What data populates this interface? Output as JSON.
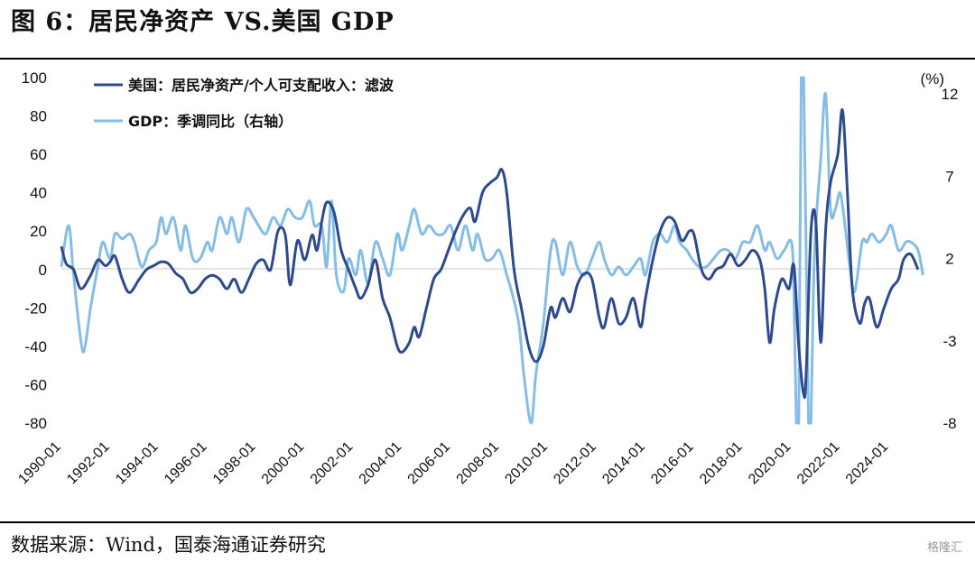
{
  "title": "图 6：居民净资产 VS.美国 GDP",
  "source": "数据来源：Wind，国泰海通证券研究",
  "watermark": "格隆汇",
  "chart_data": {
    "type": "line",
    "unit_right": "(%)",
    "left_axis": {
      "ticks": [
        100,
        80,
        60,
        40,
        20,
        0,
        -20,
        -40,
        -60,
        -80
      ],
      "ylim": [
        -80,
        100
      ]
    },
    "right_axis": {
      "ticks": [
        12,
        7,
        2,
        -3,
        -8
      ],
      "ylim": [
        -8,
        13
      ]
    },
    "x_ticks": [
      "1990-01",
      "1992-01",
      "1994-01",
      "1996-01",
      "1998-01",
      "2000-01",
      "2002-01",
      "2004-01",
      "2006-01",
      "2008-01",
      "2010-01",
      "2012-01",
      "2014-01",
      "2016-01",
      "2018-01",
      "2020-01",
      "2022-01",
      "2024-01"
    ],
    "x_range": [
      1990.0,
      2025.5
    ],
    "grid": false,
    "series": [
      {
        "name": "美国：居民净资产/个人可支配收入：滤波",
        "axis": "left",
        "color": "#2e4a8e",
        "points": [
          [
            1990.0,
            12
          ],
          [
            1990.2,
            3
          ],
          [
            1990.5,
            0
          ],
          [
            1990.8,
            -10
          ],
          [
            1991.2,
            -3
          ],
          [
            1991.5,
            5
          ],
          [
            1991.8,
            2
          ],
          [
            1992.0,
            4
          ],
          [
            1992.2,
            7
          ],
          [
            1992.5,
            -5
          ],
          [
            1992.8,
            -12
          ],
          [
            1993.2,
            -5
          ],
          [
            1993.5,
            0
          ],
          [
            1993.8,
            2
          ],
          [
            1994.1,
            4
          ],
          [
            1994.4,
            3
          ],
          [
            1994.7,
            -2
          ],
          [
            1995.0,
            -5
          ],
          [
            1995.3,
            -12
          ],
          [
            1995.6,
            -10
          ],
          [
            1995.9,
            -5
          ],
          [
            1996.2,
            -3
          ],
          [
            1996.5,
            -5
          ],
          [
            1996.8,
            -10
          ],
          [
            1997.1,
            -5
          ],
          [
            1997.4,
            -12
          ],
          [
            1997.7,
            -5
          ],
          [
            1998.0,
            3
          ],
          [
            1998.3,
            5
          ],
          [
            1998.6,
            0
          ],
          [
            1998.9,
            20
          ],
          [
            1999.2,
            18
          ],
          [
            1999.4,
            -8
          ],
          [
            1999.7,
            15
          ],
          [
            2000.0,
            5
          ],
          [
            2000.3,
            18
          ],
          [
            2000.5,
            10
          ],
          [
            2000.7,
            25
          ],
          [
            2000.9,
            35
          ],
          [
            2001.2,
            30
          ],
          [
            2001.5,
            10
          ],
          [
            2001.8,
            0
          ],
          [
            2002.1,
            -10
          ],
          [
            2002.3,
            -15
          ],
          [
            2002.6,
            -8
          ],
          [
            2002.9,
            5
          ],
          [
            2003.2,
            -15
          ],
          [
            2003.5,
            -25
          ],
          [
            2003.8,
            -40
          ],
          [
            2004.0,
            -43
          ],
          [
            2004.3,
            -38
          ],
          [
            2004.5,
            -30
          ],
          [
            2004.7,
            -35
          ],
          [
            2005.0,
            -20
          ],
          [
            2005.3,
            -5
          ],
          [
            2005.6,
            0
          ],
          [
            2005.9,
            10
          ],
          [
            2006.2,
            20
          ],
          [
            2006.5,
            28
          ],
          [
            2006.8,
            32
          ],
          [
            2007.0,
            25
          ],
          [
            2007.3,
            40
          ],
          [
            2007.6,
            45
          ],
          [
            2007.9,
            48
          ],
          [
            2008.1,
            52
          ],
          [
            2008.3,
            40
          ],
          [
            2008.6,
            0
          ],
          [
            2008.9,
            -20
          ],
          [
            2009.2,
            -40
          ],
          [
            2009.5,
            -48
          ],
          [
            2009.8,
            -40
          ],
          [
            2010.1,
            -20
          ],
          [
            2010.3,
            -25
          ],
          [
            2010.6,
            -15
          ],
          [
            2010.9,
            -22
          ],
          [
            2011.2,
            -8
          ],
          [
            2011.5,
            -2
          ],
          [
            2011.8,
            -5
          ],
          [
            2012.1,
            -25
          ],
          [
            2012.3,
            -30
          ],
          [
            2012.6,
            -15
          ],
          [
            2012.9,
            -28
          ],
          [
            2013.2,
            -25
          ],
          [
            2013.5,
            -15
          ],
          [
            2013.8,
            -30
          ],
          [
            2014.0,
            -15
          ],
          [
            2014.3,
            5
          ],
          [
            2014.6,
            20
          ],
          [
            2014.9,
            27
          ],
          [
            2015.2,
            25
          ],
          [
            2015.5,
            15
          ],
          [
            2015.8,
            20
          ],
          [
            2016.0,
            18
          ],
          [
            2016.3,
            0
          ],
          [
            2016.6,
            -5
          ],
          [
            2016.9,
            0
          ],
          [
            2017.2,
            2
          ],
          [
            2017.5,
            8
          ],
          [
            2017.8,
            2
          ],
          [
            2018.1,
            5
          ],
          [
            2018.4,
            10
          ],
          [
            2018.7,
            5
          ],
          [
            2018.9,
            -10
          ],
          [
            2019.1,
            -38
          ],
          [
            2019.3,
            -20
          ],
          [
            2019.6,
            -5
          ],
          [
            2019.9,
            -10
          ],
          [
            2020.1,
            2
          ],
          [
            2020.3,
            -40
          ],
          [
            2020.5,
            -65
          ],
          [
            2020.6,
            -55
          ],
          [
            2020.8,
            20
          ],
          [
            2021.0,
            25
          ],
          [
            2021.2,
            -38
          ],
          [
            2021.4,
            20
          ],
          [
            2021.6,
            45
          ],
          [
            2021.9,
            60
          ],
          [
            2022.1,
            83
          ],
          [
            2022.3,
            40
          ],
          [
            2022.5,
            -10
          ],
          [
            2022.8,
            -28
          ],
          [
            2023.0,
            -18
          ],
          [
            2023.2,
            -15
          ],
          [
            2023.5,
            -30
          ],
          [
            2023.8,
            -20
          ],
          [
            2024.1,
            -10
          ],
          [
            2024.4,
            -5
          ],
          [
            2024.6,
            5
          ],
          [
            2024.9,
            8
          ],
          [
            2025.2,
            0
          ]
        ]
      },
      {
        "name": "GDP：季调同比（右轴）",
        "axis": "right",
        "color": "#86bde6",
        "points": [
          [
            1990.0,
            1.5
          ],
          [
            1990.3,
            4
          ],
          [
            1990.5,
            1
          ],
          [
            1990.8,
            -3
          ],
          [
            1990.95,
            -3.5
          ],
          [
            1991.2,
            -1
          ],
          [
            1991.5,
            1.5
          ],
          [
            1991.7,
            3
          ],
          [
            1992.0,
            2
          ],
          [
            1992.2,
            3.5
          ],
          [
            1992.5,
            3.2
          ],
          [
            1992.8,
            3.5
          ],
          [
            1993.0,
            3
          ],
          [
            1993.3,
            1.5
          ],
          [
            1993.6,
            2.5
          ],
          [
            1993.9,
            3
          ],
          [
            1994.1,
            4.5
          ],
          [
            1994.3,
            3.5
          ],
          [
            1994.6,
            4.5
          ],
          [
            1994.9,
            2.5
          ],
          [
            1995.1,
            4
          ],
          [
            1995.4,
            2
          ],
          [
            1995.7,
            2
          ],
          [
            1996.0,
            3
          ],
          [
            1996.2,
            2.5
          ],
          [
            1996.5,
            4.5
          ],
          [
            1996.8,
            3.5
          ],
          [
            1997.0,
            4.5
          ],
          [
            1997.3,
            3
          ],
          [
            1997.6,
            5
          ],
          [
            1997.9,
            4.5
          ],
          [
            1998.1,
            4
          ],
          [
            1998.4,
            3.5
          ],
          [
            1998.7,
            4.5
          ],
          [
            1999.0,
            4
          ],
          [
            1999.3,
            5
          ],
          [
            1999.6,
            4.5
          ],
          [
            1999.9,
            4.5
          ],
          [
            2000.2,
            5.5
          ],
          [
            2000.4,
            4
          ],
          [
            2000.7,
            4
          ],
          [
            2000.9,
            1.5
          ],
          [
            2001.1,
            5.5
          ],
          [
            2001.3,
            1
          ],
          [
            2001.6,
            0
          ],
          [
            2001.8,
            2
          ],
          [
            2002.1,
            1
          ],
          [
            2002.3,
            2.5
          ],
          [
            2002.6,
            0.5
          ],
          [
            2002.9,
            3
          ],
          [
            2003.2,
            2
          ],
          [
            2003.5,
            1
          ],
          [
            2003.8,
            3.5
          ],
          [
            2004.0,
            2.5
          ],
          [
            2004.3,
            4
          ],
          [
            2004.5,
            5
          ],
          [
            2004.8,
            3.5
          ],
          [
            2005.1,
            4
          ],
          [
            2005.4,
            3.5
          ],
          [
            2005.7,
            3.5
          ],
          [
            2006.0,
            4
          ],
          [
            2006.3,
            2.5
          ],
          [
            2006.6,
            4
          ],
          [
            2006.9,
            2.5
          ],
          [
            2007.1,
            3.5
          ],
          [
            2007.4,
            2
          ],
          [
            2007.7,
            2
          ],
          [
            2008.0,
            2.5
          ],
          [
            2008.3,
            1
          ],
          [
            2008.5,
            0
          ],
          [
            2008.8,
            -2
          ],
          [
            2009.0,
            -5
          ],
          [
            2009.3,
            -8
          ],
          [
            2009.5,
            -5
          ],
          [
            2009.8,
            -2
          ],
          [
            2010.1,
            2.5
          ],
          [
            2010.3,
            3
          ],
          [
            2010.6,
            1
          ],
          [
            2010.9,
            3
          ],
          [
            2011.2,
            1.5
          ],
          [
            2011.5,
            1
          ],
          [
            2011.8,
            2
          ],
          [
            2012.1,
            3
          ],
          [
            2012.3,
            2
          ],
          [
            2012.6,
            1
          ],
          [
            2012.9,
            1.5
          ],
          [
            2013.2,
            1
          ],
          [
            2013.5,
            1.5
          ],
          [
            2013.8,
            2
          ],
          [
            2014.0,
            1
          ],
          [
            2014.3,
            3
          ],
          [
            2014.6,
            3.5
          ],
          [
            2014.9,
            3
          ],
          [
            2015.2,
            4
          ],
          [
            2015.4,
            3
          ],
          [
            2015.7,
            2.5
          ],
          [
            2015.9,
            2
          ],
          [
            2016.2,
            1.5
          ],
          [
            2016.5,
            1.5
          ],
          [
            2016.8,
            2
          ],
          [
            2017.1,
            2.5
          ],
          [
            2017.4,
            2.5
          ],
          [
            2017.7,
            2
          ],
          [
            2018.0,
            3
          ],
          [
            2018.3,
            3
          ],
          [
            2018.6,
            4
          ],
          [
            2018.9,
            2.5
          ],
          [
            2019.1,
            3
          ],
          [
            2019.4,
            2
          ],
          [
            2019.7,
            2.5
          ],
          [
            2020.0,
            3
          ],
          [
            2020.1,
            0
          ],
          [
            2020.2,
            -9
          ],
          [
            2020.3,
            -9
          ],
          [
            2020.4,
            13
          ],
          [
            2020.5,
            14
          ],
          [
            2020.7,
            -9
          ],
          [
            2020.8,
            -9
          ],
          [
            2020.9,
            0
          ],
          [
            2021.0,
            4
          ],
          [
            2021.2,
            8
          ],
          [
            2021.4,
            12
          ],
          [
            2021.6,
            5
          ],
          [
            2021.8,
            5
          ],
          [
            2022.0,
            6
          ],
          [
            2022.2,
            4
          ],
          [
            2022.4,
            1.5
          ],
          [
            2022.6,
            0
          ],
          [
            2022.9,
            3
          ],
          [
            2023.1,
            3
          ],
          [
            2023.3,
            3.5
          ],
          [
            2023.6,
            3
          ],
          [
            2023.9,
            3.5
          ],
          [
            2024.1,
            4
          ],
          [
            2024.4,
            2.5
          ],
          [
            2024.7,
            3
          ],
          [
            2024.9,
            3
          ],
          [
            2025.2,
            2.5
          ],
          [
            2025.4,
            1
          ]
        ]
      }
    ]
  }
}
